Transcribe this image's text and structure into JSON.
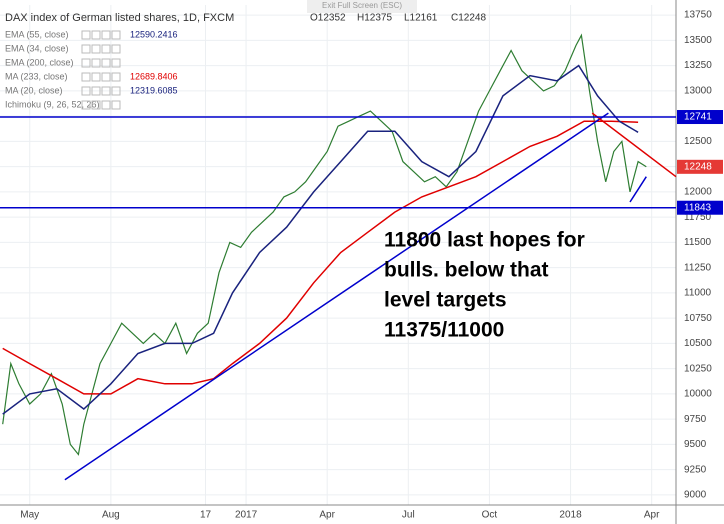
{
  "exit_label": "Exit Full Screen (ESC)",
  "chart_data": {
    "type": "line",
    "title": "DAX index of German listed shares, 1D, FXCM",
    "ohlc": [
      "O12352",
      "H12375",
      "L12161",
      "C12248"
    ],
    "indicators": [
      {
        "name": "EMA (55, close)",
        "value": 12590.2416,
        "color": "#1a237e"
      },
      {
        "name": "EMA (34, close)",
        "color": "#2196f3"
      },
      {
        "name": "EMA (200, close)",
        "color": "#2196f3"
      },
      {
        "name": "MA (233, close)",
        "value": 12689.8406,
        "color": "#e00000"
      },
      {
        "name": "MA (20, close)",
        "value": 12319.6085,
        "color": "#1a237e"
      },
      {
        "name": "Ichimoku (9, 26, 52, 26)"
      }
    ],
    "xlim": [
      2.9,
      27.9
    ],
    "ylim": [
      8900,
      13850
    ],
    "xticks": [
      {
        "value": 4,
        "label": "May"
      },
      {
        "value": 7,
        "label": "Aug"
      },
      {
        "value": 10.5,
        "label": "17"
      },
      {
        "value": 12,
        "label": "2017"
      },
      {
        "value": 15,
        "label": "Apr"
      },
      {
        "value": 18,
        "label": "Jul"
      },
      {
        "value": 21,
        "label": "Oct"
      },
      {
        "value": 24,
        "label": "2018"
      },
      {
        "value": 27,
        "label": "Apr"
      }
    ],
    "yticks": [
      9000,
      9250,
      9500,
      9750,
      10000,
      10250,
      10500,
      10750,
      11000,
      11250,
      11500,
      11750,
      12000,
      12250,
      12500,
      12750,
      13000,
      13250,
      13500,
      13750
    ],
    "grid": true,
    "series": [
      {
        "name": "price",
        "color": "#2e7d32",
        "x": [
          3.0,
          3.3,
          3.6,
          4.0,
          4.4,
          4.8,
          5.2,
          5.5,
          5.8,
          6.0,
          6.3,
          6.6,
          7.0,
          7.4,
          7.8,
          8.2,
          8.6,
          9.0,
          9.4,
          9.8,
          10.2,
          10.6,
          11.0,
          11.4,
          11.8,
          12.2,
          12.6,
          13.0,
          13.4,
          13.8,
          14.2,
          14.6,
          15.0,
          15.4,
          15.8,
          16.2,
          16.6,
          17.0,
          17.4,
          17.8,
          18.2,
          18.6,
          19.0,
          19.4,
          19.8,
          20.2,
          20.6,
          21.0,
          21.4,
          21.8,
          22.2,
          22.6,
          23.0,
          23.4,
          23.8,
          24.2,
          24.4,
          24.7,
          25.0,
          25.3,
          25.6,
          25.9,
          26.2,
          26.5,
          26.8
        ],
        "values": [
          9700,
          10300,
          10100,
          9900,
          10000,
          10200,
          9900,
          9500,
          9400,
          9700,
          10000,
          10300,
          10500,
          10700,
          10600,
          10500,
          10600,
          10500,
          10700,
          10400,
          10600,
          10700,
          11200,
          11500,
          11450,
          11600,
          11700,
          11800,
          11950,
          12000,
          12100,
          12250,
          12400,
          12650,
          12700,
          12750,
          12800,
          12700,
          12600,
          12300,
          12200,
          12100,
          12150,
          12050,
          12200,
          12500,
          12800,
          13000,
          13200,
          13400,
          13200,
          13100,
          13000,
          13050,
          13200,
          13450,
          13550,
          13000,
          12500,
          12100,
          12400,
          12500,
          12000,
          12300,
          12248
        ]
      },
      {
        "name": "MA (233, close)",
        "color": "#e00000",
        "x": [
          3,
          4,
          5,
          6,
          7,
          8,
          9,
          10,
          10.8,
          11.5,
          12.5,
          13.5,
          14.5,
          15.5,
          16.5,
          17.5,
          18.5,
          19.5,
          20.5,
          21.5,
          22.5,
          23.5,
          24.5,
          25.5,
          26.5
        ],
        "values": [
          10450,
          10300,
          10150,
          10000,
          10000,
          10150,
          10100,
          10100,
          10150,
          10300,
          10500,
          10750,
          11100,
          11400,
          11600,
          11800,
          11950,
          12050,
          12150,
          12300,
          12450,
          12550,
          12700,
          12700,
          12690
        ]
      },
      {
        "name": "EMA (55, close)",
        "color": "#1a237e",
        "x": [
          3,
          4,
          5,
          6,
          7,
          8,
          9,
          10,
          10.8,
          11.5,
          12.5,
          13.5,
          14.5,
          15.5,
          16.5,
          17.5,
          18.5,
          19.5,
          20.5,
          21.5,
          22.5,
          23.5,
          24.3,
          25,
          25.8,
          26.5
        ],
        "values": [
          9800,
          10000,
          10050,
          9850,
          10100,
          10400,
          10500,
          10500,
          10600,
          11000,
          11400,
          11650,
          12000,
          12300,
          12600,
          12600,
          12300,
          12150,
          12400,
          12950,
          13150,
          13100,
          13250,
          12950,
          12700,
          12590
        ]
      }
    ],
    "hlines": [
      {
        "value": 12741,
        "color": "#0000cc"
      },
      {
        "value": 11843,
        "color": "#0000cc"
      }
    ],
    "last_price": 12248,
    "last_price_color": "#e53935",
    "trendlines": [
      {
        "color": "#0000cc",
        "x": [
          5.3,
          25.4
        ],
        "values": [
          9150,
          12780
        ]
      },
      {
        "color": "#e00000",
        "x": [
          24.8,
          27.9
        ],
        "values": [
          12780,
          12150
        ]
      },
      {
        "color": "#0000cc",
        "x": [
          26.2,
          26.8
        ],
        "values": [
          11900,
          12150
        ]
      }
    ],
    "annotation": [
      "11800 last hopes for",
      "bulls. below that",
      "level targets",
      "11375/11000"
    ]
  }
}
